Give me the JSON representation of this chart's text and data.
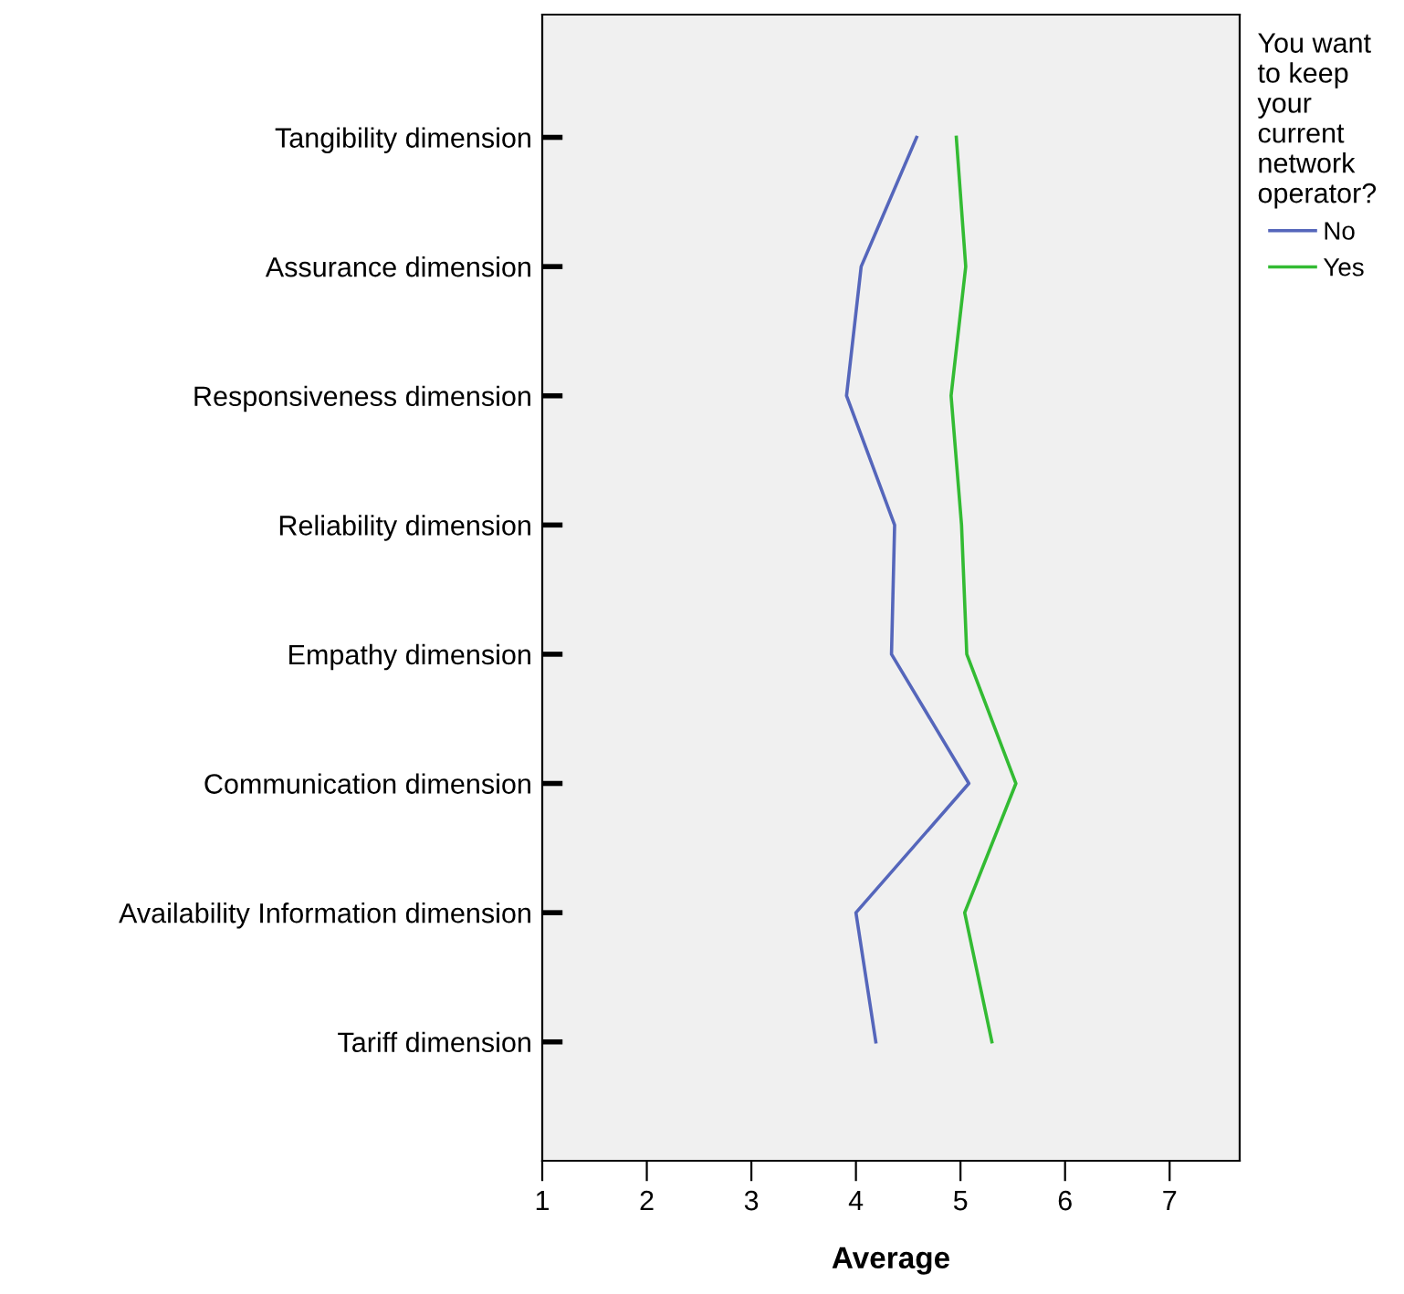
{
  "chart_data": {
    "type": "line",
    "orientation": "horizontal",
    "xlabel": "Average",
    "legend_title": "You want\nto keep\nyour\ncurrent\nnetwork\noperator?",
    "legend": "right",
    "categories": [
      "Tangibility dimension",
      "Assurance dimension",
      "Responsiveness dimension",
      "Reliability dimension",
      "Empathy dimension",
      "Communication dimension",
      "Availability Information dimension",
      "Tariff dimension"
    ],
    "series": [
      {
        "name": "No",
        "color": "#5566bb",
        "values": [
          4.58,
          4.05,
          3.91,
          4.37,
          4.34,
          5.08,
          4.0,
          4.19
        ]
      },
      {
        "name": "Yes",
        "color": "#33bb33",
        "values": [
          4.96,
          5.05,
          4.91,
          5.01,
          5.06,
          5.53,
          5.04,
          5.3
        ]
      }
    ],
    "xlim": [
      1,
      7.67
    ],
    "xticks": [
      1,
      2,
      3,
      4,
      5,
      6,
      7
    ],
    "grid": false
  }
}
